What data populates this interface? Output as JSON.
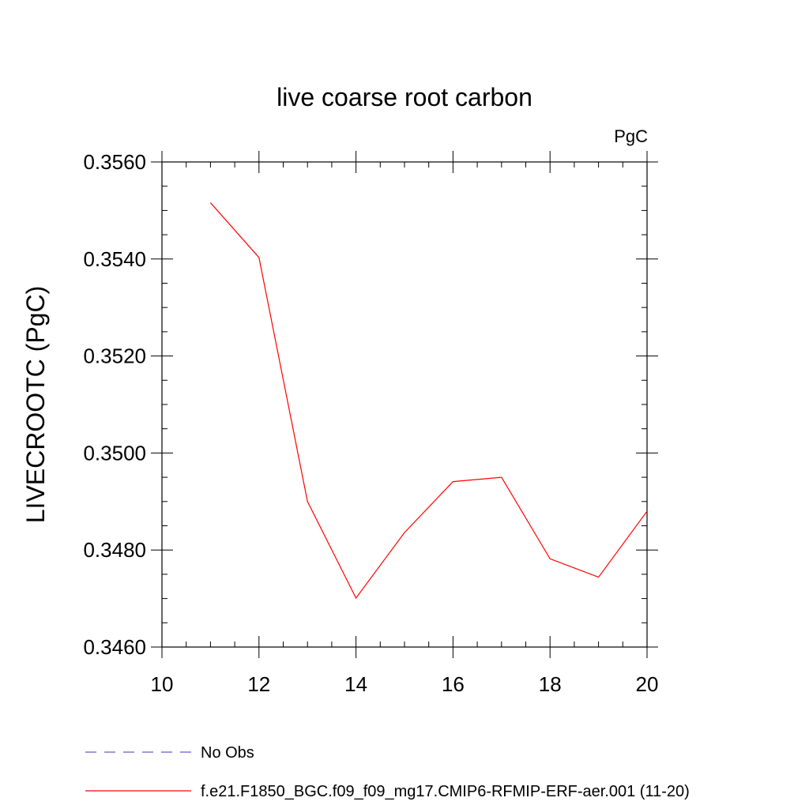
{
  "chart_data": {
    "type": "line",
    "title": "live coarse root carbon",
    "units_label": "PgC",
    "ylabel": "LIVECROOTC  (PgC)",
    "xlabel": "",
    "xlim": [
      10,
      20
    ],
    "ylim": [
      0.346,
      0.356
    ],
    "x_ticks": [
      "10",
      "12",
      "14",
      "16",
      "18",
      "20"
    ],
    "y_ticks": [
      "0.3460",
      "0.3480",
      "0.3500",
      "0.3520",
      "0.3540",
      "0.3560"
    ],
    "series": [
      {
        "name": "f.e21.F1850_BGC.f09_f09_mg17.CMIP6-RFMIP-ERF-aer.001 (11-20)",
        "color": "#ff0000",
        "x": [
          11,
          12,
          13,
          14,
          15,
          16,
          17,
          18,
          19,
          20
        ],
        "y": [
          0.35516,
          0.35403,
          0.349,
          0.34701,
          0.34836,
          0.34941,
          0.3495,
          0.34782,
          0.34744,
          0.3488
        ]
      }
    ],
    "legend": {
      "placement": "bottom-left",
      "entries": [
        {
          "label": "No Obs",
          "color": "#6a5acd",
          "style": "dashed"
        },
        {
          "label": "f.e21.F1850_BGC.f09_f09_mg17.CMIP6-RFMIP-ERF-aer.001 (11-20)",
          "color": "#ff0000",
          "style": "solid"
        }
      ]
    }
  }
}
